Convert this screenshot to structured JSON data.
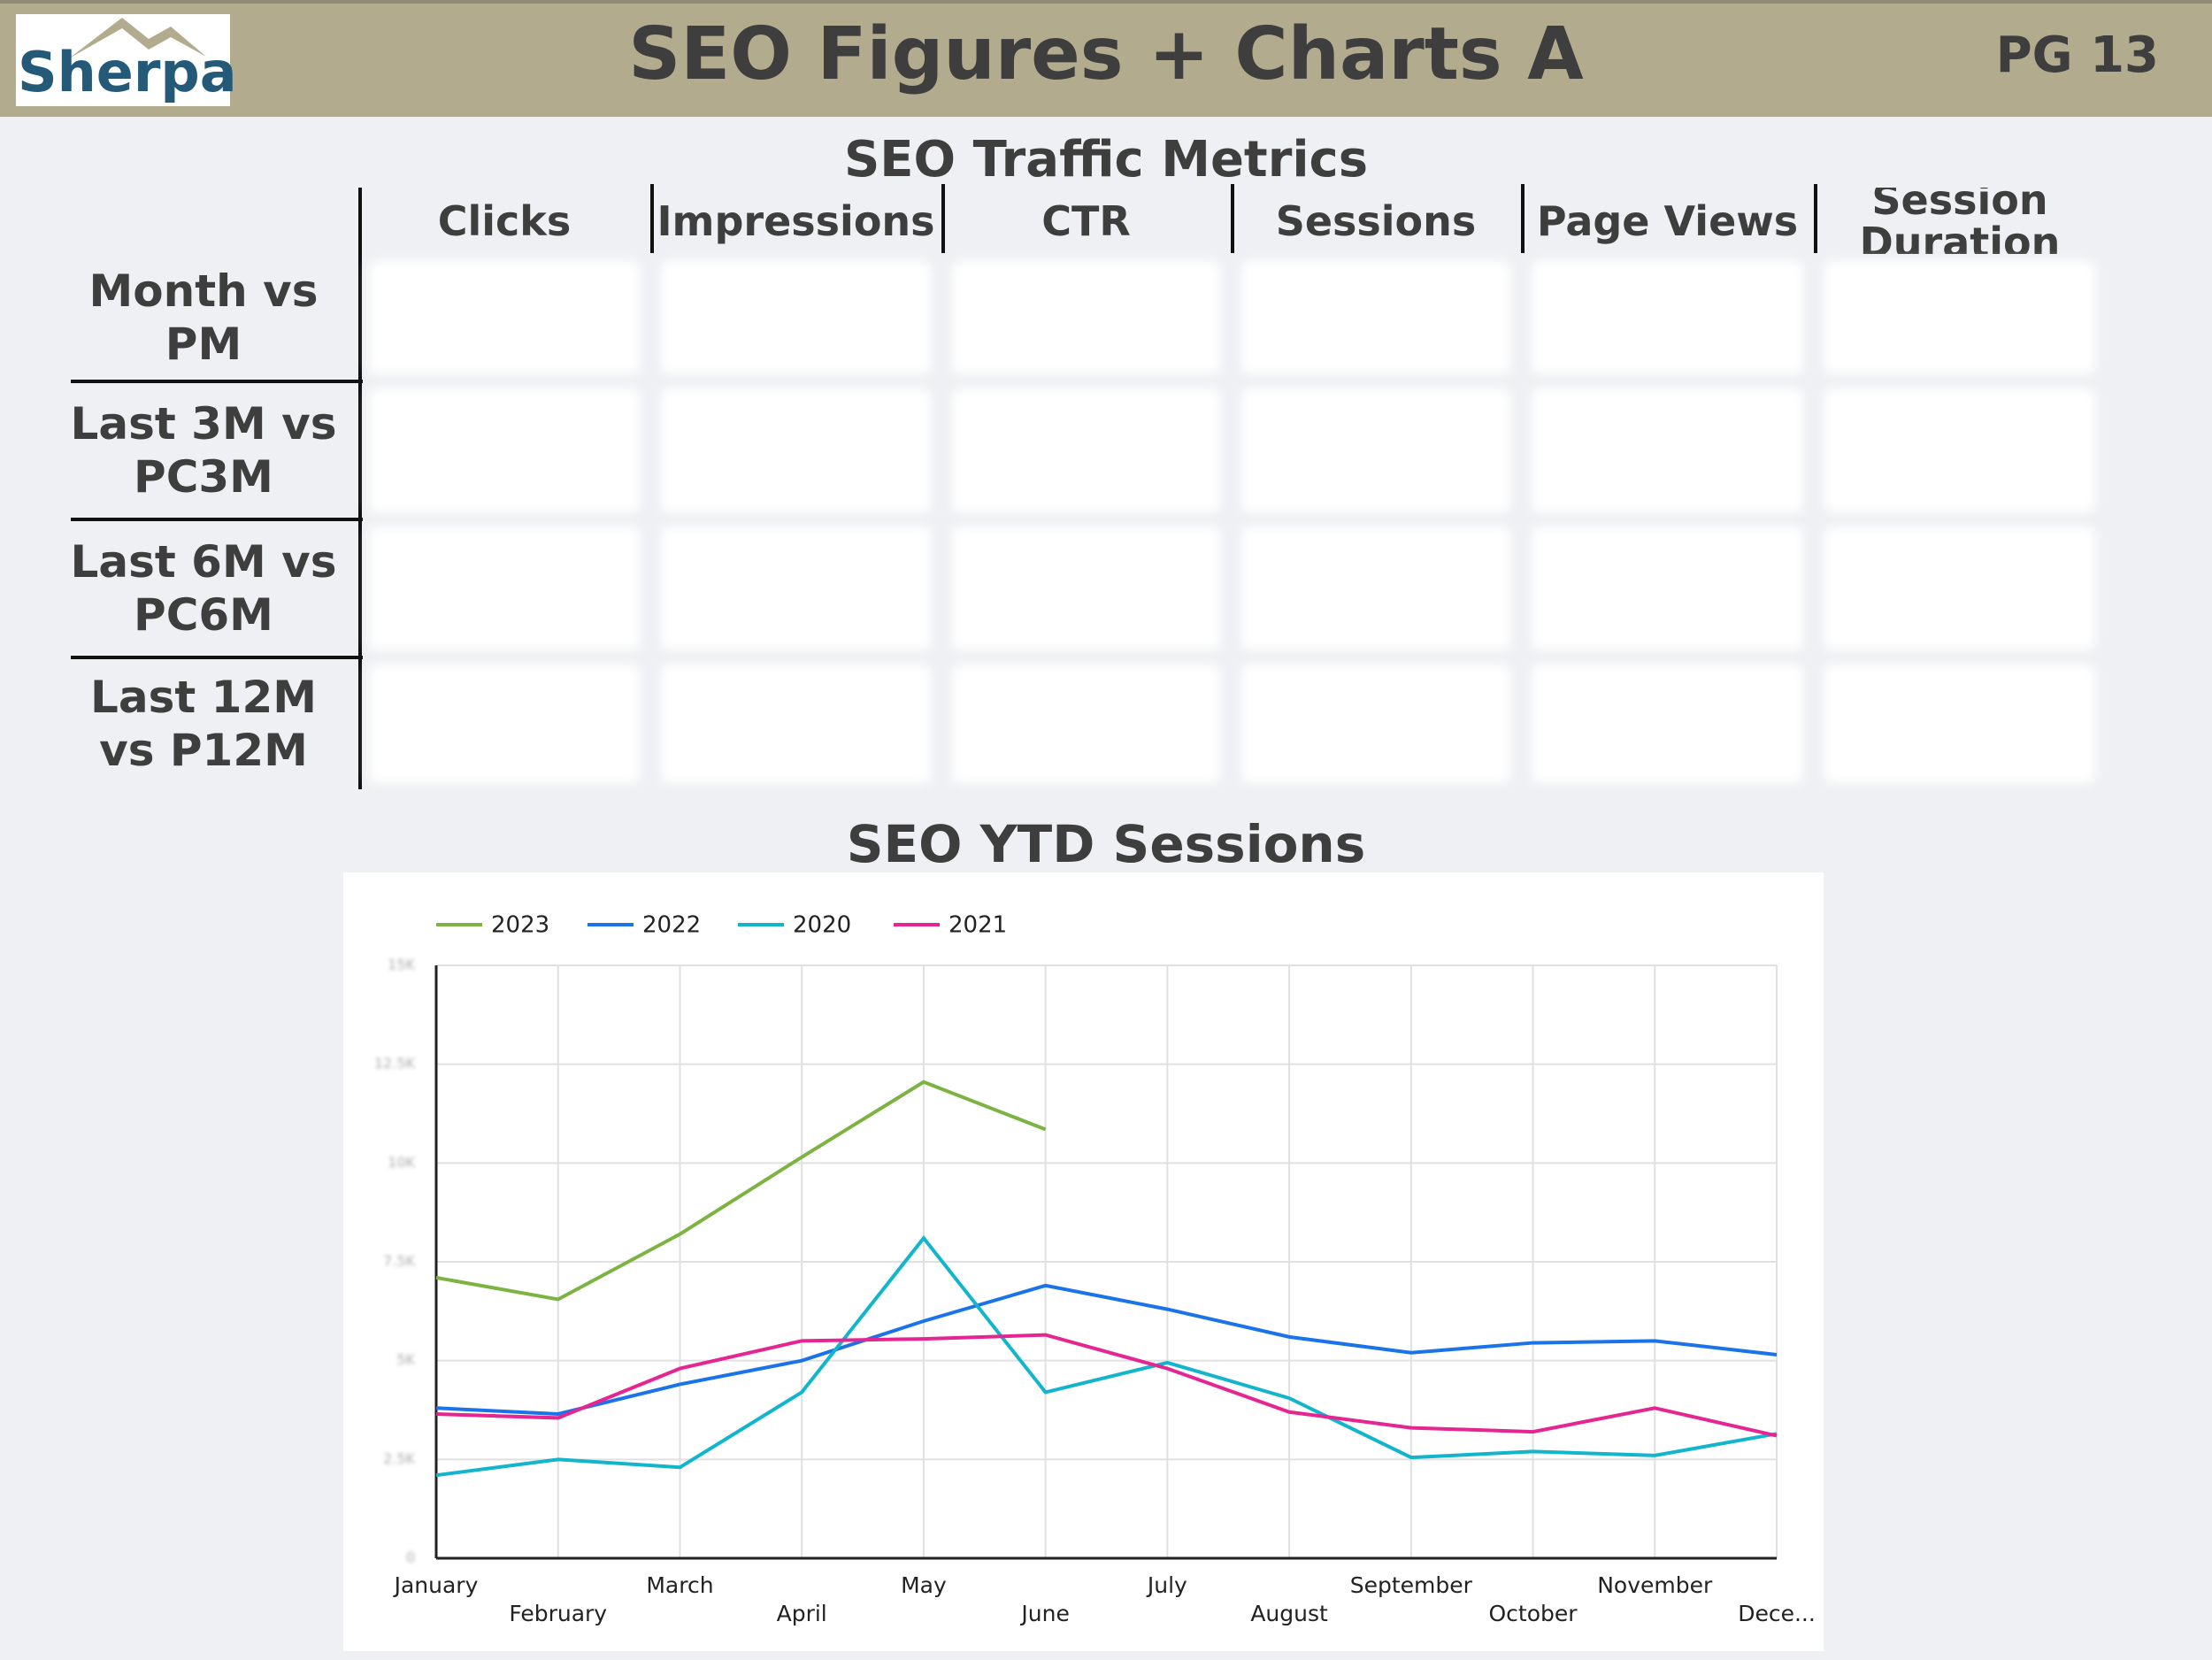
{
  "header": {
    "title": "SEO Figures + Charts A",
    "page": "PG 13",
    "logo": "Sherpa"
  },
  "table": {
    "title": "SEO Traffic Metrics",
    "columns": [
      "Clicks",
      "Impressions",
      "CTR",
      "Sessions",
      "Page Views",
      "Session Duration"
    ],
    "rows": [
      "Month vs PM",
      "Last 3M vs PC3M",
      "Last 6M vs PC6M",
      "Last 12M vs P12M"
    ]
  },
  "chart_data": {
    "type": "line",
    "title": "SEO YTD Sessions",
    "categories": [
      "January",
      "February",
      "March",
      "April",
      "May",
      "June",
      "July",
      "August",
      "September",
      "October",
      "November",
      "Dece..."
    ],
    "series": [
      {
        "name": "2023",
        "color": "#7cb342",
        "values": [
          7100,
          6550,
          8200,
          10150,
          12050,
          10850,
          null,
          null,
          null,
          null,
          null,
          null
        ]
      },
      {
        "name": "2022",
        "color": "#1a73e8",
        "values": [
          3800,
          3650,
          4400,
          5000,
          6000,
          6900,
          6300,
          5600,
          5200,
          5450,
          5500,
          5150
        ]
      },
      {
        "name": "2020",
        "color": "#12b5cb",
        "values": [
          2100,
          2500,
          2300,
          4200,
          8100,
          4200,
          4950,
          4050,
          2550,
          2700,
          2600,
          3150
        ]
      },
      {
        "name": "2021",
        "color": "#e52592",
        "values": [
          3650,
          3550,
          4800,
          5500,
          5550,
          5650,
          4800,
          3700,
          3300,
          3200,
          3800,
          3100
        ]
      }
    ],
    "ylim": [
      0,
      15000
    ],
    "yticks": [
      {
        "value": 0,
        "label": "0"
      },
      {
        "value": 2500,
        "label": "2.5K"
      },
      {
        "value": 5000,
        "label": "5K"
      },
      {
        "value": 7500,
        "label": "7.5K"
      },
      {
        "value": 10000,
        "label": "10K"
      },
      {
        "value": 12500,
        "label": "12.5K"
      },
      {
        "value": 15000,
        "label": "15K"
      }
    ],
    "grid": true
  }
}
